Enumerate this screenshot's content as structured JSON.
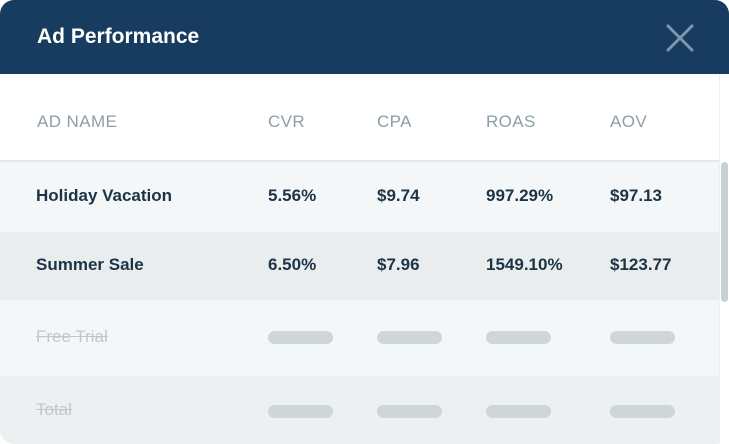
{
  "header": {
    "title": "Ad Performance",
    "close_icon": "close-icon"
  },
  "columns": [
    "AD NAME",
    "CVR",
    "CPA",
    "ROAS",
    "AOV"
  ],
  "rows": [
    {
      "name": "Holiday Vacation",
      "cvr": "5.56%",
      "cpa": "$9.74",
      "roas": "997.29%",
      "aov": "$97.13",
      "loaded": true
    },
    {
      "name": "Summer Sale",
      "cvr": "6.50%",
      "cpa": "$7.96",
      "roas": "1549.10%",
      "aov": "$123.77",
      "loaded": true
    },
    {
      "name": "Free Trial",
      "loaded": false
    },
    {
      "name": "Total",
      "loaded": false
    }
  ],
  "colors": {
    "header_bg": "#173c5f",
    "text": "#1d3346",
    "column_header": "#8b9ea8",
    "muted": "#bfc7cb",
    "placeholder": "#cfd6d9"
  }
}
